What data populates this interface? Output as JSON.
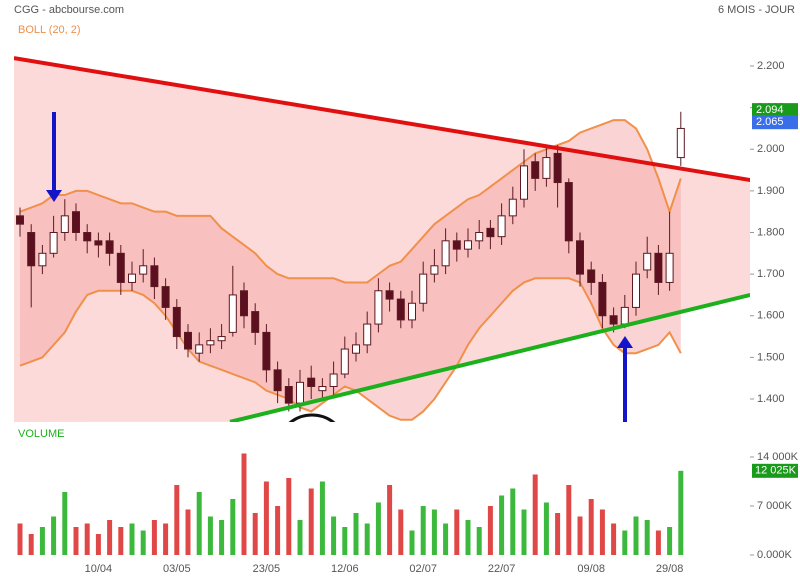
{
  "header": {
    "title": "CGG - abcbourse.com",
    "period": "6 MOIS - JOUR"
  },
  "chart_data": [
    {
      "type": "candlestick",
      "indicator_label": "BOLL (20, 2)",
      "categories": [
        null,
        null,
        null,
        null,
        null,
        null,
        null,
        "10/04",
        null,
        null,
        null,
        null,
        null,
        null,
        "03/05",
        null,
        null,
        null,
        null,
        null,
        null,
        null,
        "23/05",
        null,
        null,
        null,
        null,
        null,
        null,
        "12/06",
        null,
        null,
        null,
        null,
        null,
        null,
        "02/07",
        null,
        null,
        null,
        null,
        null,
        null,
        "22/07",
        null,
        null,
        null,
        null,
        null,
        null,
        null,
        "09/08",
        null,
        null,
        null,
        null,
        null,
        null,
        "29/08",
        null
      ],
      "open": [
        1.84,
        1.8,
        1.72,
        1.75,
        1.8,
        1.85,
        1.8,
        1.78,
        1.78,
        1.75,
        1.68,
        1.7,
        1.72,
        1.67,
        1.62,
        1.56,
        1.51,
        1.53,
        1.54,
        1.56,
        1.66,
        1.61,
        1.56,
        1.47,
        1.43,
        1.39,
        1.45,
        1.42,
        1.43,
        1.46,
        1.51,
        1.53,
        1.58,
        1.66,
        1.64,
        1.59,
        1.63,
        1.7,
        1.72,
        1.78,
        1.76,
        1.78,
        1.81,
        1.79,
        1.84,
        1.88,
        1.97,
        1.93,
        1.99,
        1.92,
        1.78,
        1.71,
        1.68,
        1.6,
        1.58,
        1.62,
        1.71,
        1.75,
        1.68,
        1.98
      ],
      "high": [
        1.86,
        1.82,
        1.77,
        1.84,
        1.88,
        1.87,
        1.82,
        1.8,
        1.8,
        1.77,
        1.73,
        1.76,
        1.74,
        1.69,
        1.64,
        1.58,
        1.56,
        1.57,
        1.58,
        1.72,
        1.68,
        1.63,
        1.58,
        1.49,
        1.45,
        1.47,
        1.48,
        1.45,
        1.49,
        1.55,
        1.56,
        1.61,
        1.69,
        1.68,
        1.66,
        1.66,
        1.73,
        1.76,
        1.81,
        1.8,
        1.81,
        1.83,
        1.83,
        1.87,
        1.91,
        2.0,
        1.99,
        2.01,
        2.01,
        1.93,
        1.8,
        1.73,
        1.7,
        1.62,
        1.65,
        1.73,
        1.79,
        1.77,
        1.85,
        2.09
      ],
      "low": [
        1.79,
        1.62,
        1.7,
        1.74,
        1.78,
        1.78,
        1.75,
        1.74,
        1.72,
        1.65,
        1.66,
        1.68,
        1.64,
        1.59,
        1.52,
        1.5,
        1.49,
        1.51,
        1.52,
        1.55,
        1.57,
        1.53,
        1.44,
        1.39,
        1.37,
        1.37,
        1.4,
        1.4,
        1.41,
        1.45,
        1.49,
        1.51,
        1.56,
        1.61,
        1.57,
        1.57,
        1.61,
        1.68,
        1.7,
        1.73,
        1.74,
        1.76,
        1.76,
        1.77,
        1.82,
        1.86,
        1.9,
        1.91,
        1.86,
        1.75,
        1.67,
        1.65,
        1.57,
        1.56,
        1.57,
        1.6,
        1.69,
        1.65,
        1.66,
        1.96
      ],
      "close": [
        1.82,
        1.72,
        1.75,
        1.8,
        1.84,
        1.8,
        1.78,
        1.77,
        1.75,
        1.68,
        1.7,
        1.72,
        1.67,
        1.62,
        1.55,
        1.52,
        1.53,
        1.54,
        1.55,
        1.65,
        1.6,
        1.56,
        1.47,
        1.42,
        1.39,
        1.44,
        1.43,
        1.43,
        1.46,
        1.52,
        1.53,
        1.58,
        1.66,
        1.64,
        1.59,
        1.63,
        1.7,
        1.72,
        1.78,
        1.76,
        1.78,
        1.8,
        1.79,
        1.84,
        1.88,
        1.96,
        1.93,
        1.98,
        1.92,
        1.78,
        1.7,
        1.68,
        1.6,
        1.58,
        1.62,
        1.7,
        1.75,
        1.68,
        1.75,
        2.05
      ],
      "up_color": "#ffffff",
      "down_color": "#5c0f1f",
      "bollinger": {
        "color": "#f0904a",
        "fill": "#f4a0a0",
        "upper": [
          1.85,
          1.86,
          1.87,
          1.89,
          1.89,
          1.9,
          1.9,
          1.89,
          1.88,
          1.87,
          1.87,
          1.86,
          1.85,
          1.85,
          1.84,
          1.84,
          1.84,
          1.84,
          1.81,
          1.79,
          1.77,
          1.75,
          1.72,
          1.7,
          1.69,
          1.69,
          1.69,
          1.69,
          1.69,
          1.68,
          1.68,
          1.68,
          1.7,
          1.72,
          1.73,
          1.76,
          1.79,
          1.82,
          1.84,
          1.86,
          1.88,
          1.89,
          1.91,
          1.93,
          1.95,
          1.97,
          1.99,
          2.0,
          2.01,
          2.02,
          2.04,
          2.05,
          2.06,
          2.07,
          2.07,
          2.05,
          2.0,
          1.93,
          1.85,
          1.93
        ],
        "lower": [
          1.48,
          1.49,
          1.5,
          1.53,
          1.56,
          1.61,
          1.65,
          1.66,
          1.66,
          1.66,
          1.66,
          1.65,
          1.63,
          1.6,
          1.56,
          1.52,
          1.49,
          1.48,
          1.47,
          1.46,
          1.45,
          1.44,
          1.42,
          1.41,
          1.4,
          1.38,
          1.37,
          1.39,
          1.41,
          1.43,
          1.42,
          1.4,
          1.38,
          1.36,
          1.35,
          1.35,
          1.37,
          1.4,
          1.44,
          1.48,
          1.53,
          1.57,
          1.6,
          1.63,
          1.66,
          1.68,
          1.69,
          1.69,
          1.69,
          1.69,
          1.68,
          1.63,
          1.57,
          1.53,
          1.51,
          1.51,
          1.52,
          1.53,
          1.56,
          1.51
        ]
      },
      "trendlines": [
        {
          "color": "#e01010",
          "x": [
            -0.54,
            65.2
          ],
          "y": [
            2.219,
            1.926
          ]
        },
        {
          "color": "#1db01d",
          "x": [
            18.75,
            65.2
          ],
          "y": [
            1.345,
            1.65
          ]
        }
      ],
      "channel_color": "#fddada",
      "ylim": [
        1.3447,
        2.3586
      ],
      "yticks": [
        {
          "value": 1.4,
          "label": "1.400"
        },
        {
          "value": 1.5,
          "label": "1.500"
        },
        {
          "value": 1.6,
          "label": "1.600"
        },
        {
          "value": 1.7,
          "label": "1.700"
        },
        {
          "value": 1.8,
          "label": "1.800"
        },
        {
          "value": 1.9,
          "label": "1.900"
        },
        {
          "value": 2.0,
          "label": "2.000"
        },
        {
          "value": 2.1,
          "label": "2.100"
        },
        {
          "value": 2.2,
          "label": "2.200"
        }
      ],
      "last_labels": [
        {
          "value": 2.094,
          "label": "2.094",
          "color": "#1a9a1a"
        },
        {
          "value": 2.065,
          "label": "2.065",
          "color": "#3a6ee8"
        }
      ]
    },
    {
      "type": "bar",
      "title": "VOLUME",
      "up_color": "#3cb83c",
      "down_color": "#e04848",
      "values": [
        4500,
        3000,
        4000,
        5500,
        9000,
        4000,
        4500,
        3000,
        5000,
        4000,
        4500,
        3500,
        5000,
        4500,
        10000,
        6500,
        9000,
        5500,
        5000,
        8000,
        14500,
        6000,
        10500,
        7000,
        11000,
        5000,
        9500,
        10500,
        5500,
        4000,
        6000,
        4500,
        7500,
        10000,
        6500,
        3500,
        7000,
        6500,
        4500,
        6500,
        5000,
        4000,
        7000,
        8500,
        9500,
        6500,
        11500,
        7500,
        6000,
        10000,
        5500,
        8000,
        6500,
        4500,
        3500,
        5500,
        5000,
        3500,
        4000,
        12025
      ],
      "ylim": [
        0,
        15570
      ],
      "yticks": [
        {
          "value": 0,
          "label": "0.000K"
        },
        {
          "value": 7000,
          "label": "7 000K"
        },
        {
          "value": 14000,
          "label": "14 000K"
        }
      ],
      "last_labels": [
        {
          "value": 12025,
          "label": "12 025K",
          "color": "#1a9a1a"
        }
      ]
    }
  ]
}
